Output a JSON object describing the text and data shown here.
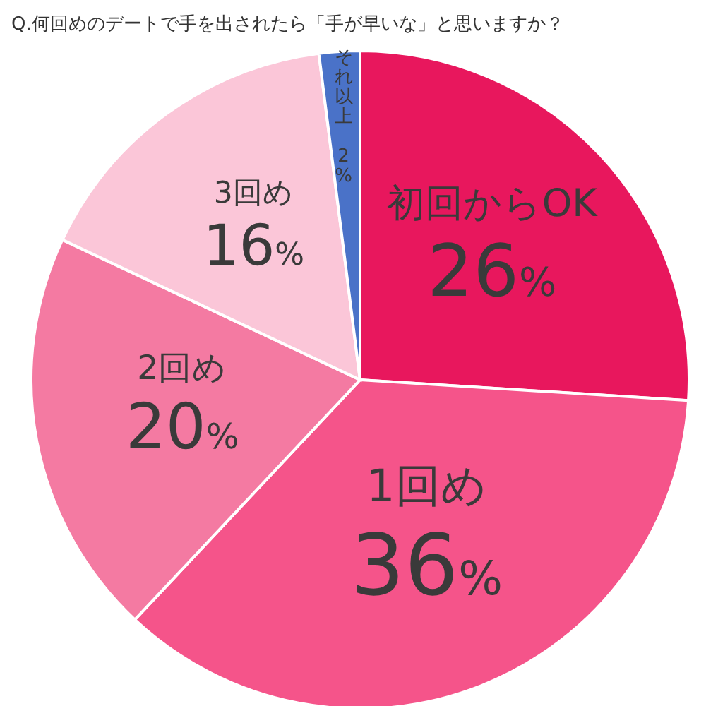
{
  "chart_data": {
    "type": "pie",
    "title": "Q.何回めのデートで手を出されたら「手が早いな」と思いますか？",
    "categories": [
      "初回からOK",
      "1回め",
      "2回め",
      "3回め",
      "それ以上"
    ],
    "values": [
      26,
      36,
      20,
      16,
      2
    ],
    "colors": [
      "#e8175d",
      "#f5548a",
      "#f47aa2",
      "#fbc6d8",
      "#4a72c8"
    ],
    "value_labels": [
      "26%",
      "36%",
      "20%",
      "16%",
      "2%"
    ]
  }
}
